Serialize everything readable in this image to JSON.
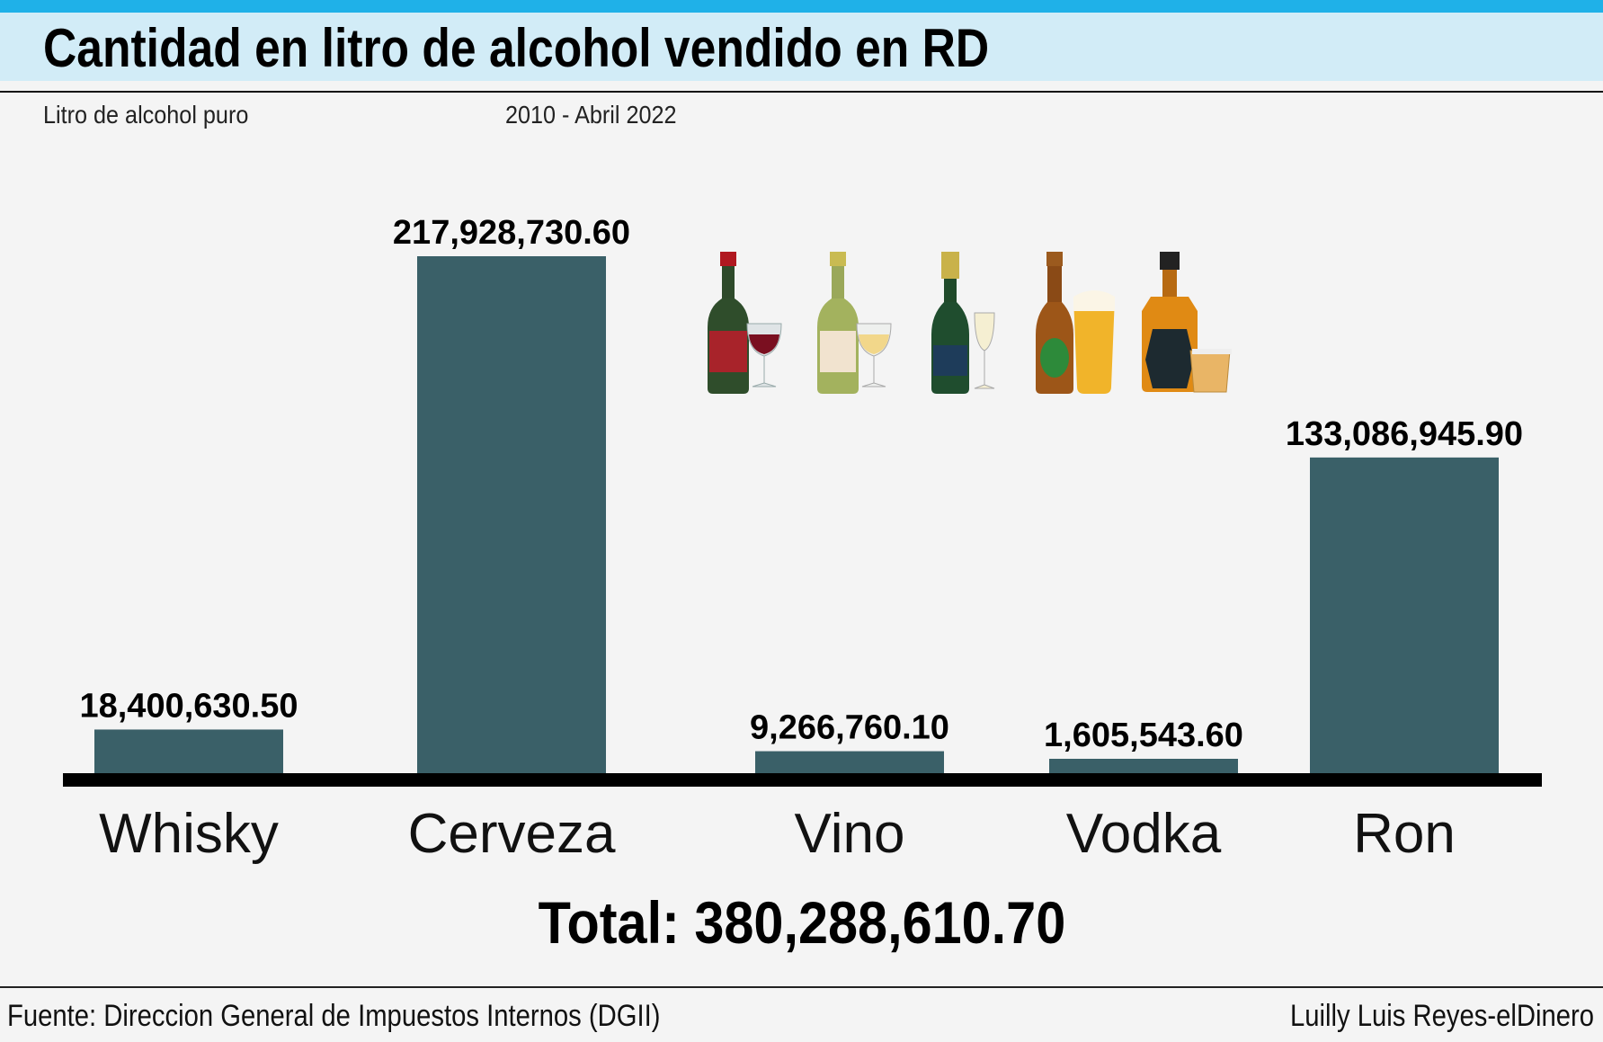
{
  "header": {
    "title": "Cantidad en litro de alcohol vendido en RD",
    "unit_note": "Litro de alcohol puro",
    "period": "2010 - Abril 2022"
  },
  "chart_data": {
    "type": "bar",
    "categories": [
      "Whisky",
      "Cerveza",
      "Vino",
      "Vodka",
      "Ron"
    ],
    "values": [
      18400630.5,
      217928730.6,
      9266760.1,
      1605543.6,
      133086945.9
    ],
    "value_labels": [
      "18,400,630.50",
      "217,928,730.60",
      "9,266,760.10",
      "1,605,543.60",
      "133,086,945.90"
    ],
    "bar_color": "#3a6068",
    "axis_color": "#000000",
    "grid": false,
    "legend": "none"
  },
  "total_text": "Total: 380,288,610.70",
  "footer": {
    "source": "Fuente: Direccion General de Impuestos Internos (DGII)",
    "credit": "Luilly Luis Reyes-elDinero"
  },
  "icons": [
    "red-wine-bottle-glass-icon",
    "white-wine-bottle-glass-icon",
    "champagne-bottle-glass-icon",
    "beer-bottle-glass-icon",
    "whisky-bottle-glass-icon"
  ]
}
